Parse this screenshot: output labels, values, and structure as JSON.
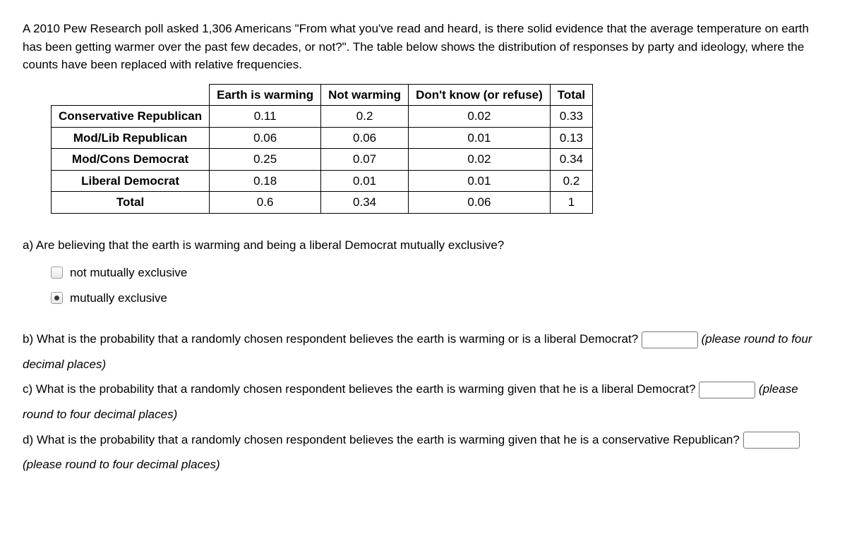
{
  "intro": "A 2010 Pew Research poll asked 1,306 Americans \"From what you've read and heard, is there solid evidence that the average temperature on earth has been getting warmer over the past few decades, or not?\". The table below shows the distribution of responses by party and ideology, where the counts have been replaced with relative frequencies.",
  "table": {
    "columns": [
      "Earth is warming",
      "Not warming",
      "Don't know (or refuse)",
      "Total"
    ],
    "rows": [
      {
        "label": "Conservative Republican",
        "cells": [
          "0.11",
          "0.2",
          "0.02",
          "0.33"
        ]
      },
      {
        "label": "Mod/Lib Republican",
        "cells": [
          "0.06",
          "0.06",
          "0.01",
          "0.13"
        ]
      },
      {
        "label": "Mod/Cons Democrat",
        "cells": [
          "0.25",
          "0.07",
          "0.02",
          "0.34"
        ]
      },
      {
        "label": "Liberal Democrat",
        "cells": [
          "0.18",
          "0.01",
          "0.01",
          "0.2"
        ]
      },
      {
        "label": "Total",
        "cells": [
          "0.6",
          "0.34",
          "0.06",
          "1"
        ]
      }
    ]
  },
  "qa": {
    "text": "a) Are believing that the earth is warming and being a liberal Democrat mutually exclusive?",
    "opt1": "not mutually exclusive",
    "opt2": "mutually exclusive",
    "selected": 2
  },
  "qb": {
    "pre": "b) What is the probability that a randomly chosen respondent believes the earth is warming or is a liberal Democrat?",
    "hint": "(please round to four decimal places)"
  },
  "qc": {
    "pre": "c) What is the probability that a randomly chosen respondent believes the earth is warming given that he is a liberal Democrat?",
    "hint": "(please round to four decimal places)"
  },
  "qd": {
    "pre": "d) What is the probability that a randomly chosen respondent believes the earth is warming given that he is a conservative Republican?",
    "hint": "(please round to four decimal places)"
  }
}
